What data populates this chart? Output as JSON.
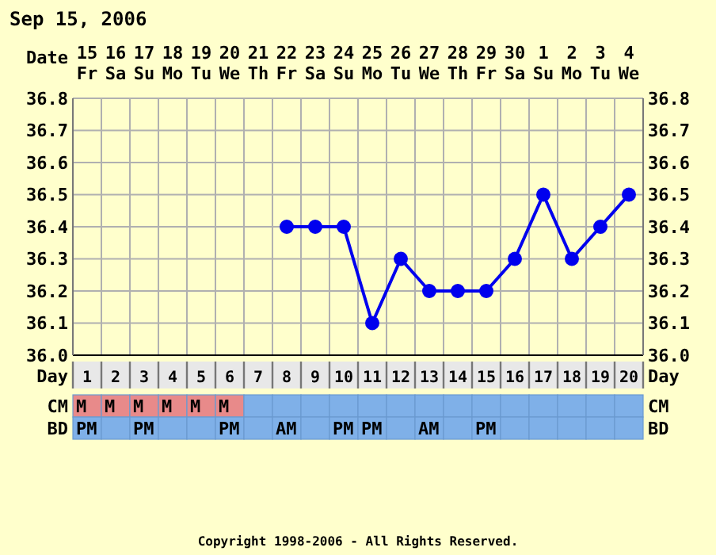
{
  "chart_data": [
    {
      "type": "line",
      "title": "Sep 15, 2006",
      "xlabel": "Date",
      "x2label": "Day",
      "series": [
        {
          "color": "#0000ee",
          "x": [
            "2006-09-22",
            "2006-09-23",
            "2006-09-24",
            "2006-09-25",
            "2006-09-26",
            "2006-09-27",
            "2006-09-28",
            "2006-09-29",
            "2006-09-30",
            "2006-10-01",
            "2006-10-02",
            "2006-10-03",
            "2006-10-04"
          ],
          "values": [
            36.4,
            36.4,
            36.4,
            36.1,
            36.3,
            36.2,
            36.2,
            36.2,
            36.3,
            36.5,
            36.3,
            36.4,
            36.5
          ]
        }
      ],
      "xlim": [
        "2006-09-14T12:00",
        "2006-10-04T12:00"
      ],
      "xticks": [
        {
          "value": "2006-09-15",
          "label": "15 Fr"
        },
        {
          "value": "2006-09-16",
          "label": "16 Sa"
        },
        {
          "value": "2006-09-17",
          "label": "17 Su"
        },
        {
          "value": "2006-09-18",
          "label": "18 Mo"
        },
        {
          "value": "2006-09-19",
          "label": "19 Tu"
        },
        {
          "value": "2006-09-20",
          "label": "20 We"
        },
        {
          "value": "2006-09-21",
          "label": "21 Th"
        },
        {
          "value": "2006-09-22",
          "label": "22 Fr"
        },
        {
          "value": "2006-09-23",
          "label": "23 Sa"
        },
        {
          "value": "2006-09-24",
          "label": "24 Su"
        },
        {
          "value": "2006-09-25",
          "label": "25 Mo"
        },
        {
          "value": "2006-09-26",
          "label": "26 Tu"
        },
        {
          "value": "2006-09-27",
          "label": "27 We"
        },
        {
          "value": "2006-09-28",
          "label": "28 Th"
        },
        {
          "value": "2006-09-29",
          "label": "29 Fr"
        },
        {
          "value": "2006-09-30",
          "label": "30 Sa"
        },
        {
          "value": "2006-10-01",
          "label": "1 Su"
        },
        {
          "value": "2006-10-02",
          "label": "2 Mo"
        },
        {
          "value": "2006-10-03",
          "label": "3 Tu"
        },
        {
          "value": "2006-10-04",
          "label": "4 We"
        }
      ],
      "x2lim": [
        0.5,
        20.5
      ],
      "x2ticks": [
        1,
        2,
        3,
        4,
        5,
        6,
        7,
        8,
        9,
        10,
        11,
        12,
        13,
        14,
        15,
        16,
        17,
        18,
        19,
        20
      ],
      "ylim": [
        36.0,
        36.8
      ],
      "yticks": [
        {
          "value": 36.0,
          "label": "36.0"
        },
        {
          "value": 36.1,
          "label": "36.1"
        },
        {
          "value": 36.2,
          "label": "36.2"
        },
        {
          "value": 36.3,
          "label": "36.3"
        },
        {
          "value": 36.4,
          "label": "36.4"
        },
        {
          "value": 36.5,
          "label": "36.5"
        },
        {
          "value": 36.6,
          "label": "36.6"
        },
        {
          "value": 36.7,
          "label": "36.7"
        },
        {
          "value": 36.8,
          "label": "36.8"
        }
      ],
      "y2lim": [
        36.0,
        36.8
      ],
      "y2ticks": [
        {
          "value": 36.0,
          "label": "36.0"
        },
        {
          "value": 36.1,
          "label": "36.1"
        },
        {
          "value": 36.2,
          "label": "36.2"
        },
        {
          "value": 36.3,
          "label": "36.3"
        },
        {
          "value": 36.4,
          "label": "36.4"
        },
        {
          "value": 36.5,
          "label": "36.5"
        },
        {
          "value": 36.6,
          "label": "36.6"
        },
        {
          "value": 36.7,
          "label": "36.7"
        },
        {
          "value": 36.8,
          "label": "36.8"
        }
      ],
      "grid": true,
      "marker": "circle",
      "line_style": "solid",
      "annotations": [
        "Copyright 1998-2006 - All Rights Reserved."
      ]
    },
    {
      "type": "heatmap",
      "categories": [
        null,
        null,
        null,
        null,
        null,
        null,
        null,
        null,
        null,
        null,
        null,
        null,
        null,
        null,
        null,
        null,
        null,
        null,
        null,
        null
      ],
      "y_categories": [
        "CM",
        "BD"
      ],
      "y2_categories": [
        "CM",
        "BD"
      ],
      "tick_labels": "y",
      "cells": [
        [
          null,
          null,
          null,
          null,
          null,
          null,
          null,
          null,
          null,
          null,
          null,
          null,
          null,
          null,
          null,
          null,
          null,
          null,
          null,
          null
        ],
        [
          null,
          null,
          null,
          null,
          null,
          null,
          null,
          null,
          null,
          null,
          null,
          null,
          null,
          null,
          null,
          null,
          null,
          null,
          null,
          null
        ]
      ],
      "cell_labels": [
        [
          "M",
          "M",
          "M",
          "M",
          "M",
          "M",
          null,
          null,
          null,
          null,
          null,
          null,
          null,
          null,
          null,
          null,
          null,
          null,
          null,
          null
        ],
        [
          "PM",
          null,
          "PM",
          null,
          null,
          "PM",
          null,
          "AM",
          null,
          "PM",
          "PM",
          null,
          "AM",
          null,
          "PM",
          null,
          null,
          null,
          null,
          null
        ]
      ]
    }
  ]
}
